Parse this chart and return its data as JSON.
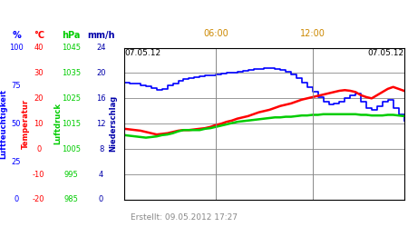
{
  "bg_color": "#ffffff",
  "plot_bg": "#ffffff",
  "grid_color": "#888888",
  "footer": "Erstellt: 09.05.2012 17:27",
  "footer_color": "#888888",
  "date_left": "07.05.12",
  "date_right": "07.05.12",
  "time_06": "06:00",
  "time_12": "12:00",
  "time_color": "#cc8800",
  "date_color": "#000000",
  "col_headers": [
    "%",
    "°C",
    "hPa",
    "mm/h"
  ],
  "col_colors": [
    "#0000ff",
    "#ff0000",
    "#00cc00",
    "#0000aa"
  ],
  "pct_ticks": [
    0,
    25,
    50,
    75,
    100
  ],
  "temp_ticks": [
    -20,
    -10,
    0,
    10,
    20,
    30,
    40
  ],
  "hpa_ticks": [
    985,
    995,
    1005,
    1015,
    1025,
    1035,
    1045
  ],
  "mmh_ticks": [
    0,
    4,
    8,
    12,
    16,
    20,
    24
  ],
  "rotated_labels": [
    "Luftfeuchtigkeit",
    "Temperatur",
    "Luftdruck",
    "Niederschlag"
  ],
  "rotated_colors": [
    "#0000ff",
    "#ff0000",
    "#00cc00",
    "#0000aa"
  ],
  "blue_line": [
    18.5,
    18.4,
    18.3,
    18.1,
    17.9,
    17.6,
    17.4,
    17.5,
    18.0,
    18.4,
    18.7,
    19.0,
    19.2,
    19.4,
    19.5,
    19.6,
    19.7,
    19.8,
    19.9,
    20.0,
    20.1,
    20.2,
    20.3,
    20.5,
    20.6,
    20.7,
    20.8,
    20.8,
    20.7,
    20.5,
    20.2,
    19.8,
    19.2,
    18.5,
    17.8,
    17.0,
    16.2,
    15.5,
    15.0,
    15.2,
    15.5,
    16.0,
    16.5,
    16.8,
    15.5,
    14.5,
    14.2,
    14.8,
    15.5,
    15.8,
    14.5,
    13.5,
    12.5
  ],
  "red_line": [
    11.2,
    11.1,
    11.0,
    10.9,
    10.7,
    10.5,
    10.3,
    10.4,
    10.5,
    10.7,
    10.9,
    11.0,
    11.0,
    11.1,
    11.2,
    11.3,
    11.5,
    11.8,
    12.0,
    12.3,
    12.5,
    12.8,
    13.0,
    13.2,
    13.5,
    13.8,
    14.0,
    14.2,
    14.5,
    14.8,
    15.0,
    15.2,
    15.5,
    15.8,
    16.0,
    16.2,
    16.4,
    16.6,
    16.8,
    17.0,
    17.2,
    17.3,
    17.2,
    17.0,
    16.5,
    16.2,
    16.0,
    16.5,
    17.0,
    17.5,
    17.8,
    17.5,
    17.2
  ],
  "green_line": [
    10.2,
    10.1,
    10.0,
    9.9,
    9.8,
    9.9,
    10.0,
    10.2,
    10.3,
    10.5,
    10.8,
    11.0,
    11.0,
    11.0,
    11.0,
    11.2,
    11.3,
    11.5,
    11.7,
    11.9,
    12.1,
    12.3,
    12.4,
    12.5,
    12.6,
    12.7,
    12.8,
    12.9,
    13.0,
    13.0,
    13.1,
    13.1,
    13.2,
    13.3,
    13.3,
    13.4,
    13.4,
    13.5,
    13.5,
    13.5,
    13.5,
    13.5,
    13.5,
    13.5,
    13.4,
    13.4,
    13.3,
    13.3,
    13.3,
    13.4,
    13.4,
    13.3,
    13.2
  ],
  "ylim": [
    0,
    24
  ],
  "xlim": [
    0,
    52
  ],
  "x_ticks_pos": [
    0,
    17,
    35,
    52
  ],
  "yticks": [
    0,
    4,
    8,
    12,
    16,
    20,
    24
  ]
}
